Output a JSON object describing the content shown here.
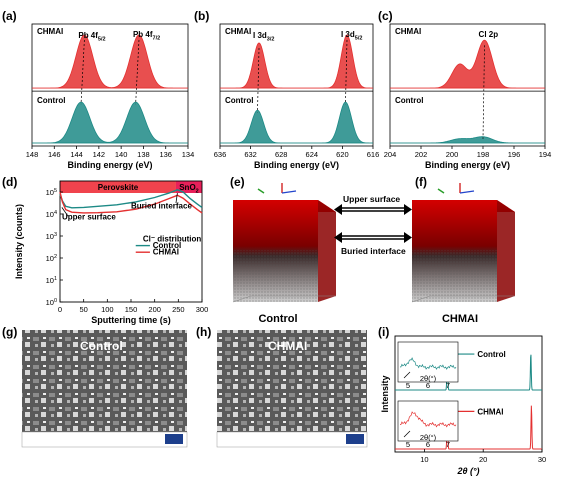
{
  "figure_labels": {
    "a": "(a)",
    "b": "(b)",
    "c": "(c)",
    "d": "(d)",
    "e": "(e)",
    "f": "(f)",
    "g": "(g)",
    "h": "(h)",
    "i": "(i)"
  },
  "colors": {
    "chmai": "#e43030",
    "control": "#1d8a86",
    "perovskite": "#f0434d",
    "sno2": "#e8205a"
  },
  "chart_data": [
    {
      "id": "a",
      "type": "area",
      "xlabel": "Binding energy (eV)",
      "xticks": [
        148,
        146,
        144,
        142,
        140,
        138,
        136,
        134
      ],
      "xlim": [
        148,
        134
      ],
      "series": [
        {
          "name": "CHMAI",
          "peaks": [
            {
              "center": 143.3,
              "width": 0.75,
              "height": 1.0,
              "label": "Pb 4f",
              "sub": "5/2"
            },
            {
              "center": 138.4,
              "width": 0.75,
              "height": 1.0,
              "label": "Pb 4f",
              "sub": "7/2"
            }
          ]
        },
        {
          "name": "Control",
          "peaks": [
            {
              "center": 143.6,
              "width": 0.8,
              "height": 1.0
            },
            {
              "center": 138.7,
              "width": 0.8,
              "height": 1.0
            }
          ]
        }
      ]
    },
    {
      "id": "b",
      "type": "area",
      "xlabel": "Binding energy (eV)",
      "xticks": [
        636,
        632,
        628,
        624,
        620,
        616
      ],
      "xlim": [
        636,
        616
      ],
      "series": [
        {
          "name": "CHMAI",
          "peaks": [
            {
              "center": 630.9,
              "width": 0.75,
              "height": 0.85,
              "label": "I 3d",
              "sub": "3/2"
            },
            {
              "center": 619.4,
              "width": 0.75,
              "height": 1.0,
              "label": "I 3d",
              "sub": "5/2"
            }
          ]
        },
        {
          "name": "Control",
          "peaks": [
            {
              "center": 631.1,
              "width": 0.8,
              "height": 0.8
            },
            {
              "center": 619.6,
              "width": 0.8,
              "height": 1.0
            }
          ]
        }
      ]
    },
    {
      "id": "c",
      "type": "area",
      "xlabel": "Binding energy (eV)",
      "xticks": [
        204,
        202,
        200,
        198,
        196,
        194
      ],
      "xlim": [
        204,
        194
      ],
      "series": [
        {
          "name": "CHMAI",
          "peaks": [
            {
              "center": 199.5,
              "width": 0.5,
              "height": 0.45
            },
            {
              "center": 197.9,
              "width": 0.5,
              "height": 0.9,
              "label": "Cl 2p"
            }
          ]
        },
        {
          "name": "Control",
          "peaks": [
            {
              "center": 199.5,
              "width": 0.6,
              "height": 0.1
            },
            {
              "center": 198.0,
              "width": 0.6,
              "height": 0.15
            }
          ]
        }
      ]
    },
    {
      "id": "d",
      "type": "line",
      "xlabel": "Sputtering time (s)",
      "ylabel": "Intensity (counts)",
      "xlim": [
        0,
        300
      ],
      "xticks": [
        0,
        50,
        100,
        150,
        200,
        250,
        300
      ],
      "yticks": [
        "10^0",
        "10^1",
        "10^2",
        "10^3",
        "10^4",
        "10^5"
      ],
      "ylim_log": [
        0,
        5.5
      ],
      "regions": [
        {
          "label": "Perovskite",
          "from": 0,
          "to": 245
        },
        {
          "label": "SnO2",
          "from": 245,
          "to": 300
        }
      ],
      "annotations": [
        "Upper surface",
        "Buried interface"
      ],
      "legend_title": "Cl⁻ distribution",
      "legend_position": "lower-right",
      "series": [
        {
          "name": "Control",
          "x": [
            0,
            5,
            12,
            25,
            50,
            80,
            120,
            160,
            200,
            230,
            248,
            260,
            275,
            290,
            300
          ],
          "y_log10": [
            4.9,
            4.6,
            4.35,
            4.28,
            4.3,
            4.35,
            4.42,
            4.55,
            4.75,
            4.95,
            5.1,
            5.0,
            4.7,
            4.45,
            4.3
          ]
        },
        {
          "name": "CHMAI",
          "x": [
            0,
            5,
            12,
            25,
            50,
            80,
            120,
            160,
            200,
            230,
            248,
            260,
            275,
            290,
            300
          ],
          "y_log10": [
            5.0,
            4.55,
            4.2,
            4.08,
            4.05,
            4.06,
            4.1,
            4.22,
            4.45,
            4.7,
            4.85,
            4.72,
            4.45,
            4.2,
            4.05
          ]
        }
      ]
    },
    {
      "id": "i",
      "type": "line",
      "xlabel": "2θ (°)",
      "ylabel": "Intensity",
      "xlim": [
        5,
        30
      ],
      "xticks": [
        10,
        20,
        30
      ],
      "series": [
        {
          "name": "Control",
          "peaks": [
            {
              "center": 13.9,
              "height": 0.95
            },
            {
              "center": 28.1,
              "height": 0.8
            }
          ]
        },
        {
          "name": "CHMAI",
          "peaks": [
            {
              "center": 13.9,
              "height": 0.95
            },
            {
              "center": 28.2,
              "height": 0.9
            }
          ]
        }
      ],
      "insets": [
        {
          "series": "Control",
          "xticks": [
            5,
            6,
            7
          ],
          "xlabel": "2θ(°)"
        },
        {
          "series": "CHMAI",
          "xticks": [
            5,
            6,
            7
          ],
          "xlabel": "2θ(°)"
        }
      ]
    }
  ],
  "tof3d": {
    "e": {
      "upper_label": "Upper surface",
      "buried_label": "Buried interface",
      "caption": "Control"
    },
    "f": {
      "caption": "CHMAI"
    }
  },
  "sem": {
    "g": {
      "label": "Control"
    },
    "h": {
      "label": "CHMAI"
    }
  }
}
